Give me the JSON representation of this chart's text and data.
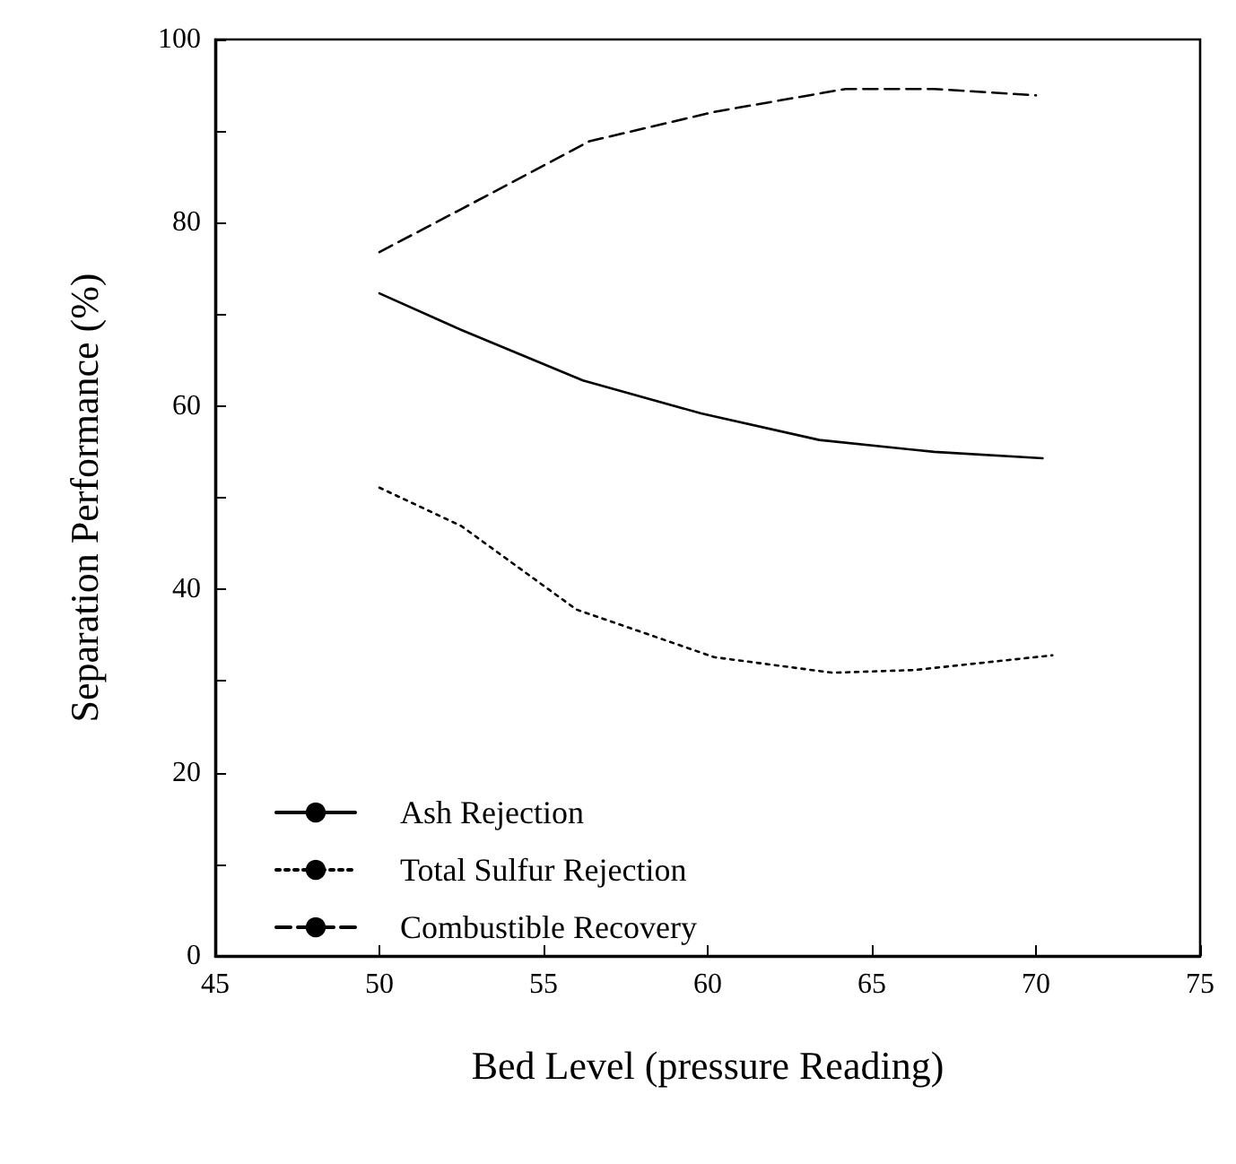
{
  "chart_data": {
    "type": "line",
    "xlabel": "Bed Level (pressure Reading)",
    "ylabel": "Separation Performance (%)",
    "xlim": [
      45,
      75
    ],
    "xticks": [
      45,
      50,
      55,
      60,
      65,
      70,
      75
    ],
    "ylim": [
      0,
      100
    ],
    "yticks": [
      0,
      {
        "value": 10,
        "label": null
      },
      20,
      {
        "value": 30,
        "label": null
      },
      40,
      {
        "value": 50,
        "label": null
      },
      60,
      {
        "value": 70,
        "label": null
      },
      80,
      {
        "value": 90,
        "label": null
      },
      100
    ],
    "grid": false,
    "legend": "bottom left",
    "marker": "none",
    "series": [
      {
        "name": "Ash Rejection",
        "color": "#000000",
        "line_style": "solid",
        "x": [
          50,
          52.5,
          56.2,
          59.8,
          63.4,
          66.9,
          70.2
        ],
        "values": [
          72.3,
          68.3,
          62.8,
          59.2,
          56.3,
          55.0,
          54.3
        ]
      },
      {
        "name": "Total Sulfur Rejection",
        "color": "#000000",
        "line_style": "dotted",
        "x": [
          50,
          52.5,
          56,
          60.2,
          63.8,
          66.3,
          70.5
        ],
        "values": [
          51.1,
          46.9,
          37.8,
          32.6,
          30.9,
          31.2,
          32.8
        ]
      },
      {
        "name": "Combustible Recovery",
        "color": "#000000",
        "line_style": "dashed",
        "x": [
          50,
          52.5,
          56.4,
          60.2,
          64.2,
          66.9,
          70
        ],
        "values": [
          76.8,
          81.5,
          88.9,
          92.1,
          94.6,
          94.6,
          93.9
        ]
      }
    ]
  }
}
